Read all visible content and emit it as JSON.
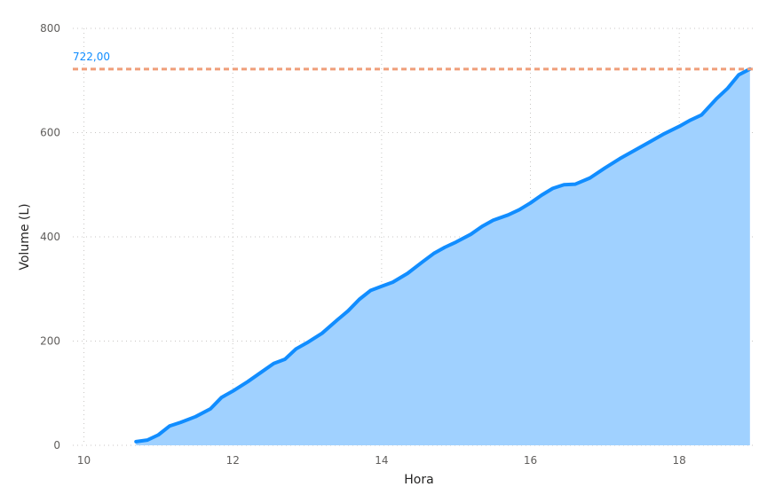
{
  "chart_data": {
    "type": "area",
    "xlabel": "Hora",
    "ylabel": "Volume (L)",
    "xlim": [
      9.85,
      19.0
    ],
    "ylim": [
      0,
      800
    ],
    "x_ticks": [
      10,
      12,
      14,
      16,
      18
    ],
    "y_ticks": [
      0,
      200,
      400,
      600,
      800
    ],
    "x_tick_labels": [
      "10",
      "12",
      "14",
      "16",
      "18"
    ],
    "y_tick_labels": [
      "0",
      "200",
      "400",
      "600",
      "800"
    ],
    "grid": true,
    "legend": "none",
    "series": [
      {
        "x": [
          10.7,
          10.85,
          11.0,
          11.15,
          11.3,
          11.5,
          11.7,
          11.85,
          12.0,
          12.2,
          12.4,
          12.55,
          12.7,
          12.85,
          13.0,
          13.2,
          13.4,
          13.55,
          13.7,
          13.85,
          14.0,
          14.15,
          14.35,
          14.55,
          14.7,
          14.85,
          15.0,
          15.2,
          15.35,
          15.5,
          15.7,
          15.85,
          16.0,
          16.15,
          16.3,
          16.45,
          16.6,
          16.8,
          17.0,
          17.2,
          17.4,
          17.6,
          17.8,
          18.0,
          18.15,
          18.3,
          18.5,
          18.65,
          18.8,
          18.95
        ],
        "y": [
          7,
          10,
          20,
          37,
          44,
          55,
          70,
          92,
          104,
          122,
          142,
          157,
          165,
          185,
          197,
          215,
          240,
          258,
          280,
          297,
          305,
          313,
          330,
          352,
          368,
          380,
          390,
          405,
          420,
          432,
          442,
          452,
          465,
          480,
          493,
          500,
          501,
          513,
          532,
          550,
          566,
          582,
          598,
          612,
          624,
          634,
          665,
          685,
          711,
          722
        ],
        "color": "#118dff",
        "fill": "#a0d1ff"
      }
    ],
    "reference_line": {
      "value": 722,
      "label": "722,00",
      "color": "#ef9e7a",
      "label_color": "#118dff"
    }
  }
}
